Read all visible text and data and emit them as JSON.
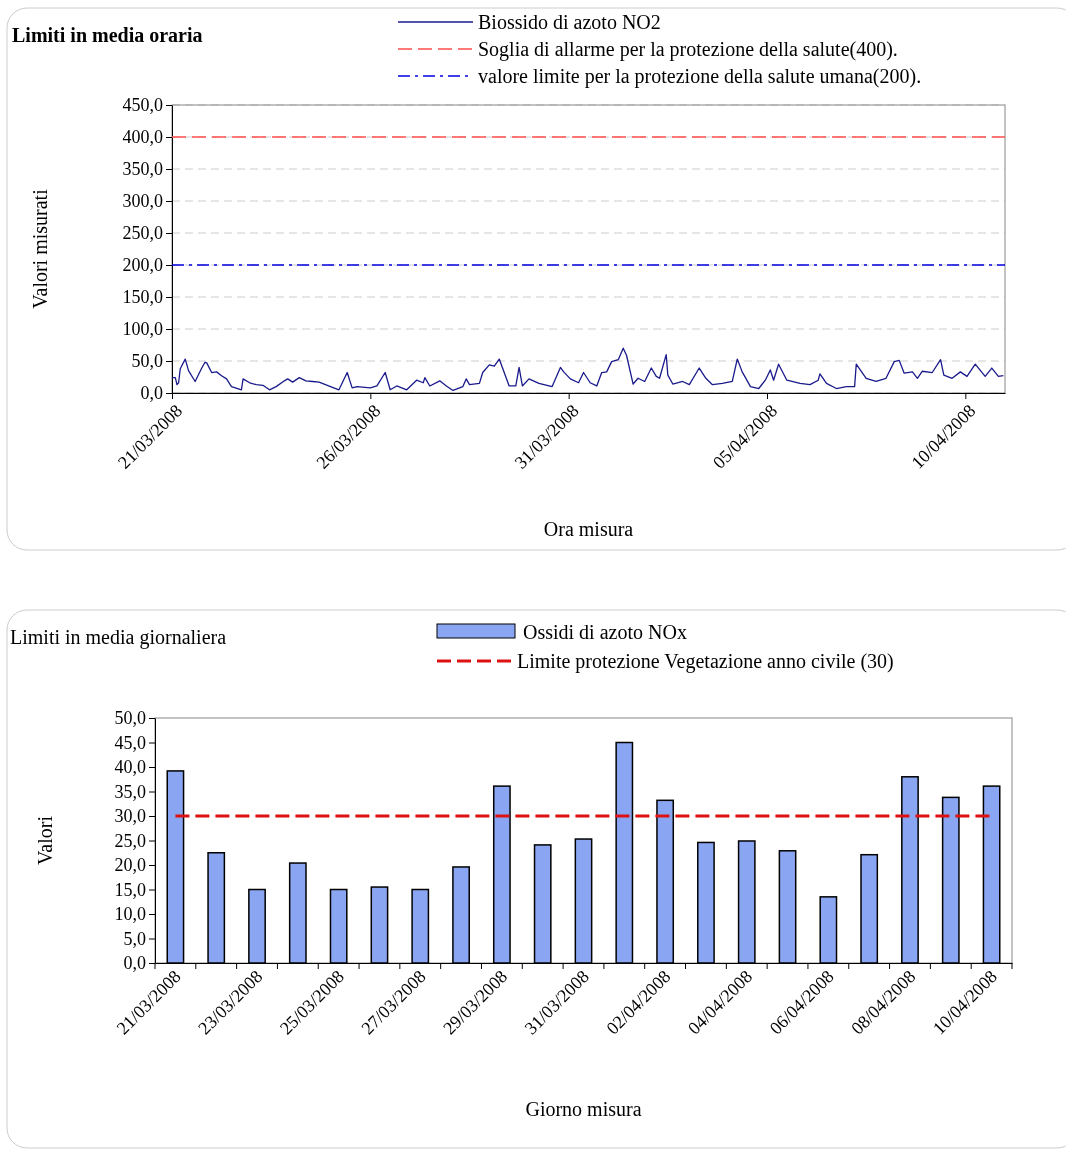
{
  "chart_data": [
    {
      "type": "line",
      "title": "Limiti in media oraria",
      "xlabel": "Ora misura",
      "ylabel": "Valori misurati",
      "legend": "top",
      "grid": "y",
      "xlim": [
        "2008-03-21",
        "2008-04-11"
      ],
      "xticks": [
        {
          "value": "2008-03-21",
          "label": "21/03/2008"
        },
        {
          "value": "2008-03-26",
          "label": "26/03/2008"
        },
        {
          "value": "2008-03-31",
          "label": "31/03/2008"
        },
        {
          "value": "2008-04-05",
          "label": "05/04/2008"
        },
        {
          "value": "2008-04-10",
          "label": "10/04/2008"
        }
      ],
      "ylim": [
        0,
        450
      ],
      "yticks": [
        {
          "value": 0,
          "label": "0,0"
        },
        {
          "value": 50,
          "label": "50,0"
        },
        {
          "value": 100,
          "label": "100,0"
        },
        {
          "value": 150,
          "label": "150,0"
        },
        {
          "value": 200,
          "label": "200,0"
        },
        {
          "value": 250,
          "label": "250,0"
        },
        {
          "value": 300,
          "label": "300,0"
        },
        {
          "value": 350,
          "label": "350,0"
        },
        {
          "value": 400,
          "label": "400,0"
        },
        {
          "value": 450,
          "label": "450,0"
        }
      ],
      "series": [
        {
          "name": "Biossido di azoto NO2",
          "color": "#1a1a8c",
          "x": [
            "2008-03-21T00:00",
            "2008-03-21T02:00",
            "2008-03-21T03:00",
            "2008-03-21T04:00",
            "2008-03-21T05:00",
            "2008-03-21T08:00",
            "2008-03-21T10:00",
            "2008-03-21T14:00",
            "2008-03-21T18:00",
            "2008-03-21T20:00",
            "2008-03-21T21:00",
            "2008-03-22T00:00",
            "2008-03-22T03:00",
            "2008-03-22T06:00",
            "2008-03-22T09:00",
            "2008-03-22T12:00",
            "2008-03-22T18:00",
            "2008-03-22T19:00",
            "2008-03-22T23:00",
            "2008-03-23T03:00",
            "2008-03-23T07:00",
            "2008-03-23T11:00",
            "2008-03-23T15:00",
            "2008-03-23T20:00",
            "2008-03-23T22:00",
            "2008-03-24T01:00",
            "2008-03-24T05:00",
            "2008-03-24T09:00",
            "2008-03-24T13:00",
            "2008-03-24T17:00",
            "2008-03-24T22:00",
            "2008-03-25T05:00",
            "2008-03-25T10:00",
            "2008-03-25T13:00",
            "2008-03-25T16:00",
            "2008-03-26T00:00",
            "2008-03-26T04:00",
            "2008-03-26T09:00",
            "2008-03-26T12:00",
            "2008-03-26T16:00",
            "2008-03-26T22:00",
            "2008-03-27T04:00",
            "2008-03-27T08:00",
            "2008-03-27T09:00",
            "2008-03-27T12:00",
            "2008-03-27T18:00",
            "2008-03-27T22:00",
            "2008-03-28T02:00",
            "2008-03-28T08:00",
            "2008-03-28T10:00",
            "2008-03-28T12:00",
            "2008-03-28T18:00",
            "2008-03-28T20:00",
            "2008-03-29T00:00",
            "2008-03-29T03:00",
            "2008-03-29T06:00",
            "2008-03-29T12:00",
            "2008-03-29T16:00",
            "2008-03-29T18:00",
            "2008-03-29T20:00",
            "2008-03-30T00:00",
            "2008-03-30T06:00",
            "2008-03-30T14:00",
            "2008-03-30T19:00",
            "2008-03-30T21:00",
            "2008-03-31T01:00",
            "2008-03-31T06:00",
            "2008-03-31T09:00",
            "2008-03-31T13:00",
            "2008-03-31T17:00",
            "2008-03-31T20:00",
            "2008-03-31T23:00",
            "2008-04-01T02:00",
            "2008-04-01T06:00",
            "2008-04-01T09:00",
            "2008-04-01T11:00",
            "2008-04-01T15:00",
            "2008-04-01T18:00",
            "2008-04-01T22:00",
            "2008-04-02T02:00",
            "2008-04-02T05:00",
            "2008-04-02T07:00",
            "2008-04-02T11:00",
            "2008-04-02T12:00",
            "2008-04-02T15:00",
            "2008-04-02T21:00",
            "2008-04-03T01:00",
            "2008-04-03T07:00",
            "2008-04-03T11:00",
            "2008-04-03T15:00",
            "2008-04-03T21:00",
            "2008-04-04T03:00",
            "2008-04-04T06:00",
            "2008-04-04T09:00",
            "2008-04-04T14:00",
            "2008-04-04T19:00",
            "2008-04-04T23:00",
            "2008-04-05T02:00",
            "2008-04-05T04:00",
            "2008-04-05T07:00",
            "2008-04-05T12:00",
            "2008-04-05T20:00",
            "2008-04-06T02:00",
            "2008-04-06T07:00",
            "2008-04-06T08:00",
            "2008-04-06T12:00",
            "2008-04-06T18:00",
            "2008-04-07T00:00",
            "2008-04-07T05:00",
            "2008-04-07T06:00",
            "2008-04-07T12:00",
            "2008-04-07T18:00",
            "2008-04-08T00:00",
            "2008-04-08T05:00",
            "2008-04-08T08:00",
            "2008-04-08T11:00",
            "2008-04-08T16:00",
            "2008-04-08T19:00",
            "2008-04-08T22:00",
            "2008-04-09T04:00",
            "2008-04-09T09:00",
            "2008-04-09T11:00",
            "2008-04-09T16:00",
            "2008-04-09T21:00",
            "2008-04-10T01:00",
            "2008-04-10T06:00",
            "2008-04-10T12:00",
            "2008-04-10T16:00",
            "2008-04-10T20:00",
            "2008-04-10T23:00"
          ],
          "values": [
            24,
            24,
            13,
            16,
            38,
            53,
            35,
            18,
            39,
            48,
            47,
            32,
            33,
            27,
            22,
            10,
            5,
            22,
            16,
            13,
            12,
            5,
            10,
            19,
            22,
            17,
            24,
            19,
            18,
            17,
            12,
            5,
            32,
            8,
            10,
            8,
            11,
            32,
            5,
            11,
            5,
            20,
            16,
            24,
            11,
            19,
            11,
            4,
            10,
            22,
            13,
            15,
            32,
            44,
            42,
            53,
            11,
            11,
            40,
            11,
            22,
            15,
            10,
            40,
            33,
            22,
            16,
            32,
            16,
            11,
            32,
            33,
            49,
            52,
            70,
            59,
            14,
            23,
            18,
            39,
            26,
            23,
            60,
            28,
            14,
            18,
            13,
            39,
            23,
            13,
            15,
            18,
            53,
            33,
            10,
            7,
            20,
            36,
            20,
            45,
            20,
            15,
            13,
            20,
            30,
            15,
            7,
            10,
            10,
            45,
            23,
            18,
            23,
            49,
            51,
            31,
            33,
            23,
            34,
            32,
            52,
            28,
            23,
            33,
            26,
            45,
            26,
            39,
            26,
            27
          ]
        }
      ],
      "ref_lines": [
        {
          "axis": "y",
          "value": 400,
          "label": "Soglia di allarme  per la protezione della salute(400).",
          "color": "#ff4d4d",
          "line_style": "dashed"
        },
        {
          "axis": "y",
          "value": 200,
          "label": "valore limite per la protezione della salute umana(200).",
          "color": "#0000dd",
          "line_style": "dashdot"
        }
      ]
    },
    {
      "type": "bar",
      "title": "Limiti in media giornaliera",
      "xlabel": "Giorno misura",
      "ylabel": "Valori",
      "legend": "top",
      "categories": [
        "21/03/2008",
        null,
        "23/03/2008",
        null,
        "25/03/2008",
        null,
        "27/03/2008",
        null,
        "29/03/2008",
        null,
        "31/03/2008",
        null,
        "02/04/2008",
        null,
        "04/04/2008",
        null,
        "06/04/2008",
        null,
        "08/04/2008",
        null,
        "10/04/2008"
      ],
      "ylim": [
        0,
        50
      ],
      "yticks": [
        {
          "value": 0,
          "label": "0,0"
        },
        {
          "value": 5,
          "label": "5,0"
        },
        {
          "value": 10,
          "label": "10,0"
        },
        {
          "value": 15,
          "label": "15,0"
        },
        {
          "value": 20,
          "label": "20,0"
        },
        {
          "value": 25,
          "label": "25,0"
        },
        {
          "value": 30,
          "label": "30,0"
        },
        {
          "value": 35,
          "label": "35,0"
        },
        {
          "value": 40,
          "label": "40,0"
        },
        {
          "value": 45,
          "label": "45,0"
        },
        {
          "value": 50,
          "label": "50,0"
        }
      ],
      "series": [
        {
          "name": "Ossidi di azoto NOx",
          "color": "#8aa6f2",
          "values": [
            39.2,
            22.5,
            15.0,
            20.4,
            15.0,
            15.5,
            15.0,
            19.6,
            36.1,
            24.1,
            25.3,
            45.0,
            33.2,
            24.6,
            24.9,
            22.9,
            13.5,
            22.1,
            38.0,
            33.8,
            36.1
          ]
        }
      ],
      "ref_lines": [
        {
          "axis": "y",
          "value": 30,
          "label": "Limite protezione Vegetazione anno civile (30)",
          "color": "#dd1111",
          "line_style": "dashed"
        }
      ]
    }
  ]
}
